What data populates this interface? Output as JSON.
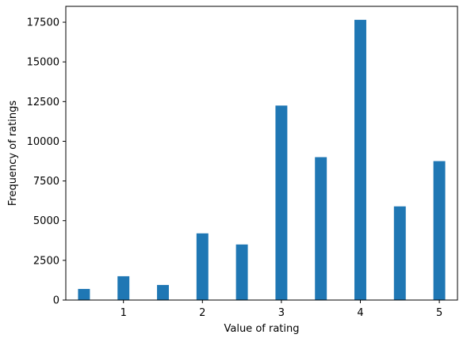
{
  "chart_data": {
    "type": "bar",
    "title": "",
    "xlabel": "Value of rating",
    "ylabel": "Frequency of ratings",
    "x": [
      0.5,
      1.0,
      1.5,
      2.0,
      2.5,
      3.0,
      3.5,
      4.0,
      4.5,
      5.0
    ],
    "values": [
      700,
      1500,
      950,
      4200,
      3500,
      12250,
      9000,
      17650,
      5900,
      8750
    ],
    "xlim": [
      0.27,
      5.23
    ],
    "ylim": [
      0,
      18500
    ],
    "xticks": [
      1,
      2,
      3,
      4,
      5
    ],
    "xtick_labels": [
      "1",
      "2",
      "3",
      "4",
      "5"
    ],
    "yticks": [
      0,
      2500,
      5000,
      7500,
      10000,
      12500,
      15000,
      17500
    ],
    "ytick_labels": [
      "0",
      "2500",
      "5000",
      "7500",
      "10000",
      "12500",
      "15000",
      "17500"
    ],
    "bar_width": 0.15,
    "bar_color": "#1f77b4",
    "grid": false,
    "legend": "none"
  }
}
